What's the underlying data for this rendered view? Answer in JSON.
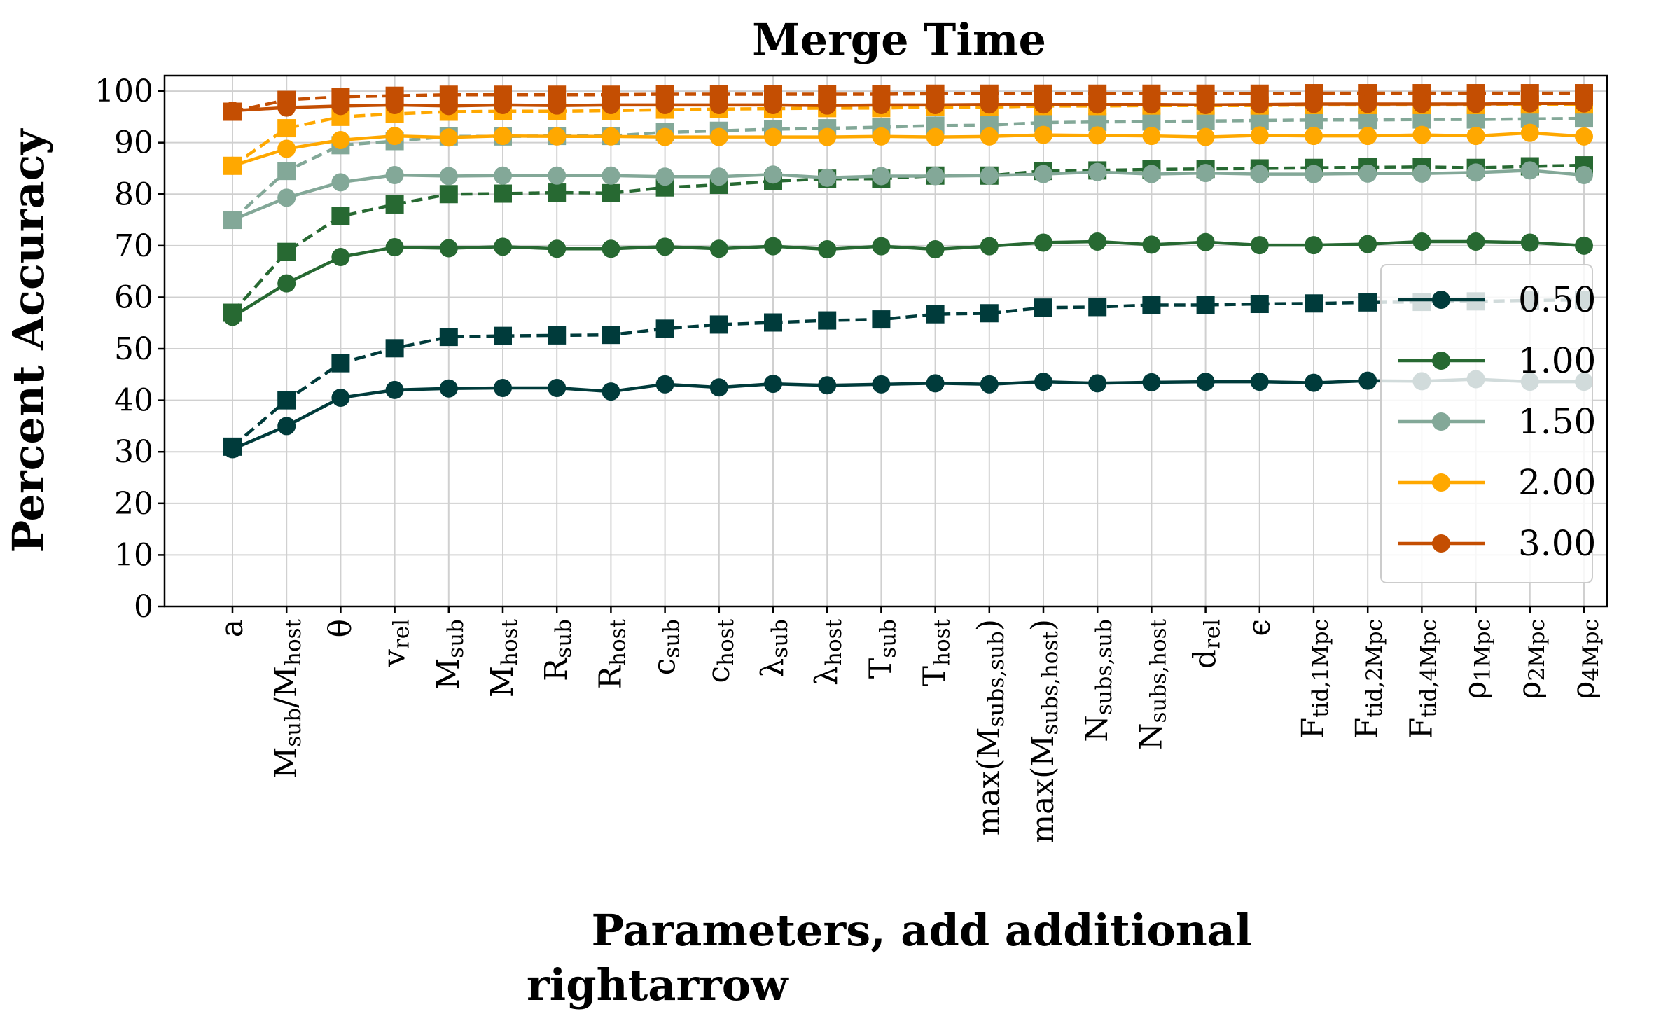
{
  "chart_data": {
    "type": "line",
    "title": "Merge Time",
    "xlabel_lines": [
      "Parameters, add additional",
      "rightarrow"
    ],
    "ylabel": "Percent Accuracy",
    "ylim": [
      0,
      103
    ],
    "yticks": [
      0,
      10,
      20,
      30,
      40,
      50,
      60,
      70,
      80,
      90,
      100
    ],
    "ytick_labels": [
      "0",
      "10",
      "20",
      "30",
      "40",
      "50",
      "60",
      "70",
      "80",
      "90",
      "100"
    ],
    "grid": true,
    "legend_position": "right",
    "categories": [
      {
        "base": "a",
        "sub": ""
      },
      {
        "base": "M",
        "sub": "sub",
        "base2": "/M",
        "sub2": "host"
      },
      {
        "base": "θ",
        "sub": ""
      },
      {
        "base": "v",
        "sub": "rel"
      },
      {
        "base": "M",
        "sub": "sub"
      },
      {
        "base": "M",
        "sub": "host"
      },
      {
        "base": "R",
        "sub": "sub"
      },
      {
        "base": "R",
        "sub": "host"
      },
      {
        "base": "c",
        "sub": "sub"
      },
      {
        "base": "c",
        "sub": "host"
      },
      {
        "base": "λ",
        "sub": "sub"
      },
      {
        "base": "λ",
        "sub": "host"
      },
      {
        "base": "T",
        "sub": "sub"
      },
      {
        "base": "T",
        "sub": "host"
      },
      {
        "base": "max(M",
        "sub": "subs,sub",
        "base2": ")"
      },
      {
        "base": "max(M",
        "sub": "subs,host",
        "base2": ")"
      },
      {
        "base": "N",
        "sub": "subs,sub"
      },
      {
        "base": "N",
        "sub": "subs,host"
      },
      {
        "base": "d",
        "sub": "rel"
      },
      {
        "base": "ϵ",
        "sub": ""
      },
      {
        "base": "F",
        "sub": "tid,1Mpc"
      },
      {
        "base": "F",
        "sub": "tid,2Mpc"
      },
      {
        "base": "F",
        "sub": "tid,4Mpc"
      },
      {
        "base": "ρ",
        "sub": "1Mpc"
      },
      {
        "base": "ρ",
        "sub": "2Mpc"
      },
      {
        "base": "ρ",
        "sub": "4Mpc"
      }
    ],
    "series": [
      {
        "name": "0.50",
        "color": "#003b3b",
        "style": "solid",
        "marker": "circle",
        "values": [
          30.5,
          35,
          40.5,
          42,
          42.3,
          42.4,
          42.4,
          41.7,
          43.1,
          42.5,
          43.2,
          42.9,
          43.1,
          43.3,
          43.1,
          43.6,
          43.3,
          43.5,
          43.6,
          43.6,
          43.4,
          43.8,
          43.7,
          44.1,
          43.6,
          43.6
        ]
      },
      {
        "name": "",
        "color": "#003b3b",
        "style": "dashed",
        "marker": "square",
        "values": [
          31,
          40,
          47.2,
          50.1,
          52.3,
          52.5,
          52.6,
          52.7,
          53.9,
          54.7,
          55.1,
          55.5,
          55.7,
          56.7,
          56.9,
          58,
          58.1,
          58.5,
          58.5,
          58.7,
          58.8,
          59,
          59.1,
          59.2,
          59.4,
          59.5
        ]
      },
      {
        "name": "1.00",
        "color": "#276932",
        "style": "solid",
        "marker": "circle",
        "values": [
          56.2,
          62.7,
          67.8,
          69.7,
          69.5,
          69.8,
          69.4,
          69.4,
          69.8,
          69.4,
          69.9,
          69.3,
          69.9,
          69.3,
          69.9,
          70.6,
          70.8,
          70.2,
          70.7,
          70.1,
          70.1,
          70.3,
          70.8,
          70.8,
          70.6,
          70
        ]
      },
      {
        "name": "",
        "color": "#276932",
        "style": "dashed",
        "marker": "square",
        "values": [
          57,
          68.8,
          75.7,
          78,
          80,
          80.1,
          80.3,
          80.2,
          81.3,
          81.8,
          82.5,
          83,
          83,
          83.6,
          83.6,
          84.5,
          84.6,
          84.8,
          84.9,
          85,
          85.1,
          85.2,
          85.3,
          85.1,
          85.4,
          85.6
        ]
      },
      {
        "name": "1.50",
        "color": "#83a898",
        "style": "solid",
        "marker": "circle",
        "values": [
          75,
          79.3,
          82.3,
          83.7,
          83.5,
          83.6,
          83.6,
          83.6,
          83.4,
          83.4,
          83.8,
          83.2,
          83.5,
          83.5,
          83.6,
          83.9,
          84.3,
          83.9,
          84.1,
          83.9,
          83.9,
          84,
          84,
          84.2,
          84.6,
          83.7
        ]
      },
      {
        "name": "",
        "color": "#83a898",
        "style": "dashed",
        "marker": "square",
        "values": [
          75,
          84.5,
          89.5,
          90.3,
          91.2,
          91.2,
          91.3,
          91.3,
          92,
          92.3,
          92.6,
          92.8,
          93,
          93.3,
          93.4,
          93.9,
          94,
          94.1,
          94.2,
          94.3,
          94.4,
          94.4,
          94.5,
          94.5,
          94.6,
          94.7
        ]
      },
      {
        "name": "2.00",
        "color": "#ffa800",
        "style": "solid",
        "marker": "circle",
        "values": [
          85.5,
          88.8,
          90.5,
          91.3,
          91,
          91.3,
          91.2,
          91.2,
          91.1,
          91.1,
          91.1,
          91.1,
          91.2,
          91.1,
          91.2,
          91.5,
          91.4,
          91.3,
          91.1,
          91.4,
          91.3,
          91.3,
          91.5,
          91.3,
          91.9,
          91.2
        ]
      },
      {
        "name": "",
        "color": "#ffa800",
        "style": "dashed",
        "marker": "square",
        "values": [
          85.5,
          92.8,
          95,
          95.6,
          96,
          96.1,
          96.1,
          96.2,
          96.4,
          96.5,
          96.6,
          96.7,
          96.7,
          96.9,
          96.9,
          97.1,
          97.1,
          97.2,
          97.2,
          97.2,
          97.3,
          97.3,
          97.3,
          97.3,
          97.4,
          97.4
        ]
      },
      {
        "name": "3.00",
        "color": "#c44e02",
        "style": "solid",
        "marker": "circle",
        "values": [
          96.2,
          96.8,
          97.1,
          97.3,
          97.1,
          97.3,
          97.2,
          97.3,
          97.3,
          97.3,
          97.3,
          97.2,
          97.3,
          97.3,
          97.4,
          97.4,
          97.4,
          97.4,
          97.3,
          97.4,
          97.5,
          97.5,
          97.5,
          97.5,
          97.6,
          97.6
        ]
      },
      {
        "name": "",
        "color": "#c44e02",
        "style": "dashed",
        "marker": "square",
        "values": [
          96,
          98.3,
          98.9,
          99.1,
          99.3,
          99.3,
          99.3,
          99.3,
          99.4,
          99.4,
          99.4,
          99.4,
          99.4,
          99.5,
          99.5,
          99.5,
          99.5,
          99.5,
          99.5,
          99.5,
          99.6,
          99.6,
          99.6,
          99.6,
          99.6,
          99.6
        ]
      }
    ]
  }
}
